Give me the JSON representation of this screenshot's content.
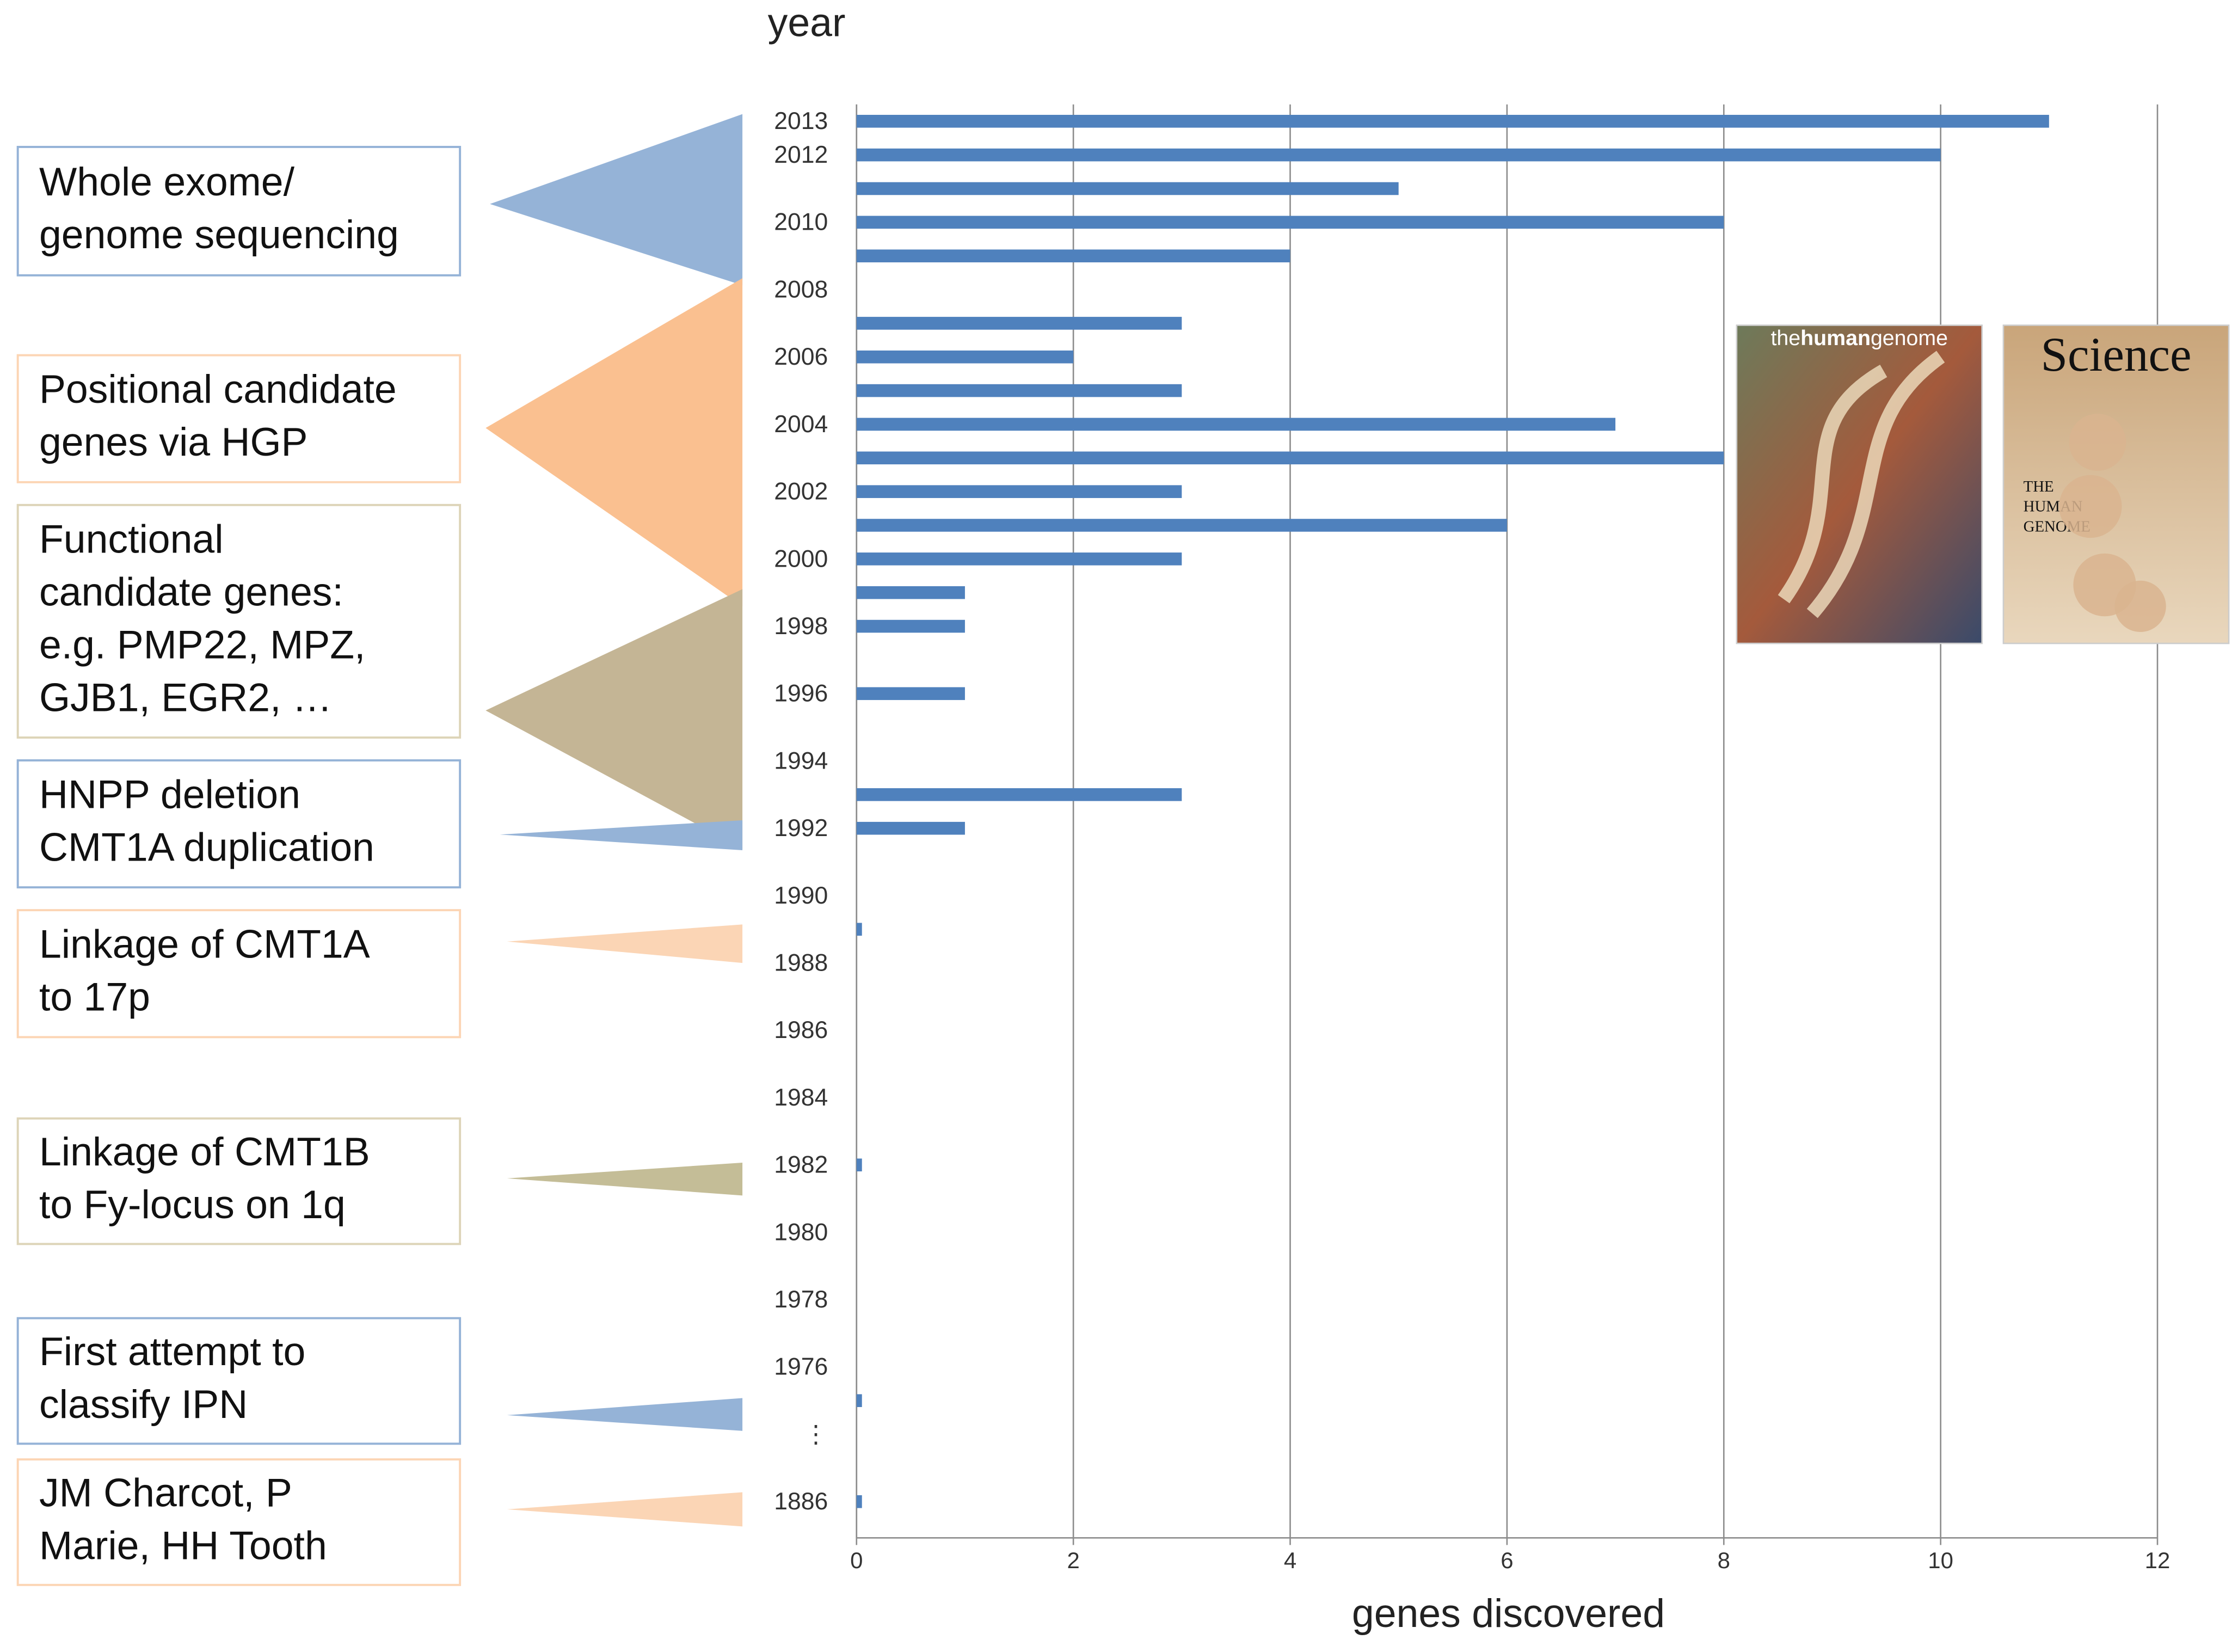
{
  "chart_data": {
    "type": "barh",
    "y_label": "year",
    "x_label": "genes discovered",
    "categories": [
      "2013",
      "2012",
      null,
      "2010",
      null,
      "2008",
      null,
      "2006",
      null,
      "2004",
      null,
      "2002",
      null,
      "2000",
      null,
      "1998",
      null,
      "1996",
      null,
      "1994",
      null,
      "1992",
      null,
      "1990",
      null,
      "1988",
      null,
      "1986",
      null,
      "1984",
      null,
      "1982",
      null,
      "1980",
      null,
      "1978",
      null,
      "1976",
      null,
      "⋮",
      null,
      "1886"
    ],
    "values": [
      11,
      10,
      5,
      8,
      4,
      0,
      3,
      2,
      3,
      7,
      8,
      3,
      6,
      3,
      1,
      1,
      0,
      1,
      0,
      0,
      3,
      1,
      0,
      0,
      0.05,
      0,
      0,
      0,
      0,
      0,
      0,
      0.05,
      0,
      0,
      0,
      0,
      0,
      0,
      0.05,
      0,
      0,
      0.05
    ],
    "color": "#4f81bd",
    "xlim": [
      0,
      12
    ],
    "xticks": [
      0,
      2,
      4,
      6,
      8,
      10,
      12
    ],
    "grid": true,
    "annotations": [
      {
        "lines": [
          "Whole exome/",
          "genome sequencing"
        ],
        "color": "#95b3d7",
        "border": "#95b3d7"
      },
      {
        "lines": [
          "Positional candidate",
          "genes via HGP"
        ],
        "color": "#fac090",
        "border": "#fcd5b4"
      },
      {
        "lines": [
          "Functional",
          "candidate genes:",
          "e.g. PMP22, MPZ,",
          "GJB1, EGR2, …"
        ],
        "color": "#c4b595",
        "border": "#ddd4b8"
      },
      {
        "lines": [
          "HNPP deletion",
          "CMT1A duplication"
        ],
        "color": "#95b3d7",
        "border": "#95b3d7"
      },
      {
        "lines": [
          "Linkage of CMT1A",
          "to 17p"
        ],
        "color": "#fbd5b5",
        "border": "#fcd5b4"
      },
      {
        "lines": [
          "Linkage of CMT1B",
          "to Fy-locus on 1q"
        ],
        "color": "#c4bd97",
        "border": "#ddd4b8"
      },
      {
        "lines": [
          "First attempt to",
          "classify IPN"
        ],
        "color": "#95b3d7",
        "border": "#95b3d7"
      },
      {
        "lines": [
          "JM Charcot, P",
          "Marie, HH Tooth"
        ],
        "color": "#fbd5b5",
        "border": "#fcd5b4"
      }
    ],
    "covers": [
      {
        "title": [
          "the",
          "human",
          "genome"
        ]
      },
      {
        "title": [
          "Science"
        ],
        "subtitle": [
          "THE",
          "HUMAN",
          "GENOME"
        ]
      }
    ]
  }
}
